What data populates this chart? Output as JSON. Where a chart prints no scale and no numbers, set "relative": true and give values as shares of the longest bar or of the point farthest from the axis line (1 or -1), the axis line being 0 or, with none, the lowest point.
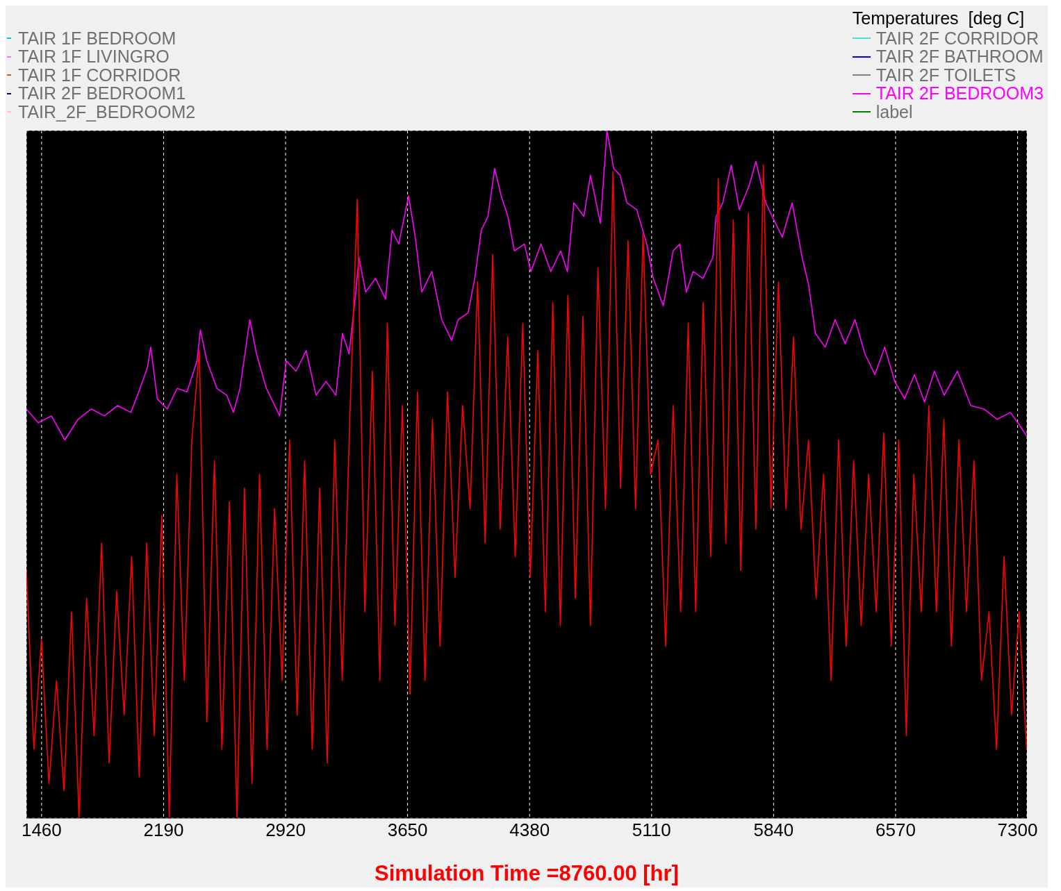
{
  "chart_data": {
    "type": "line",
    "relative": true,
    "legend_title": "Temperatures  [deg C]",
    "legend": "top",
    "grid": true,
    "xlabel": "Simulation Time =8760.00 [hr]",
    "xlim": [
      1369,
      7356
    ],
    "xticks": [
      1460,
      2190,
      2920,
      3650,
      4380,
      5110,
      5840,
      6570,
      7300
    ],
    "series": [
      {
        "name": "TAIR 1F BEDROOM",
        "color": "#00bfff"
      },
      {
        "name": "TAIR 1F LIVINGRO",
        "color": "#ee82ee"
      },
      {
        "name": "TAIR 1F CORRIDOR",
        "color": "#cc6600"
      },
      {
        "name": "TAIR 2F BEDROOM1",
        "color": "#000080"
      },
      {
        "name": "TAIR_2F_BEDROOM2",
        "color": "#ffc0cb"
      },
      {
        "name": "TAIR 2F CORRIDOR",
        "color": "#40e0e0"
      },
      {
        "name": "TAIR 2F BATHROOM",
        "color": "#0000ff"
      },
      {
        "name": "TAIR 2F TOILETS",
        "color": "#808080"
      },
      {
        "name": "TAIR 2F BEDROOM3",
        "color": "#ff00ff",
        "x": [
          1369,
          1440,
          1519,
          1599,
          1678,
          1757,
          1836,
          1915,
          1994,
          2034,
          2093,
          2113,
          2152,
          2212,
          2271,
          2330,
          2390,
          2410,
          2449,
          2509,
          2568,
          2608,
          2647,
          2706,
          2746,
          2805,
          2865,
          2884,
          2924,
          2983,
          3043,
          3102,
          3162,
          3221,
          3260,
          3300,
          3340,
          3359,
          3399,
          3458,
          3518,
          3557,
          3597,
          3656,
          3696,
          3735,
          3795,
          3854,
          3913,
          3953,
          4012,
          4052,
          4091,
          4131,
          4171,
          4210,
          4250,
          4289,
          4349,
          4388,
          4448,
          4507,
          4566,
          4606,
          4645,
          4705,
          4744,
          4804,
          4843,
          4883,
          4922,
          4962,
          5021,
          5081,
          5120,
          5180,
          5239,
          5279,
          5318,
          5358,
          5417,
          5476,
          5496,
          5536,
          5587,
          5635,
          5694,
          5734,
          5793,
          5832,
          5892,
          5951,
          6011,
          6050,
          6090,
          6149,
          6208,
          6268,
          6327,
          6387,
          6446,
          6505,
          6565,
          6624,
          6683,
          6743,
          6802,
          6861,
          6940,
          7020,
          7099,
          7178,
          7257,
          7316,
          7356
        ],
        "values": [
          0.595,
          0.575,
          0.585,
          0.55,
          0.58,
          0.595,
          0.585,
          0.6,
          0.59,
          0.615,
          0.655,
          0.685,
          0.61,
          0.595,
          0.625,
          0.62,
          0.665,
          0.71,
          0.665,
          0.625,
          0.615,
          0.59,
          0.625,
          0.725,
          0.675,
          0.625,
          0.595,
          0.585,
          0.665,
          0.65,
          0.68,
          0.615,
          0.635,
          0.615,
          0.705,
          0.675,
          0.765,
          0.815,
          0.765,
          0.785,
          0.755,
          0.855,
          0.835,
          0.905,
          0.845,
          0.765,
          0.795,
          0.725,
          0.695,
          0.725,
          0.735,
          0.785,
          0.855,
          0.875,
          0.945,
          0.905,
          0.875,
          0.825,
          0.835,
          0.795,
          0.835,
          0.795,
          0.825,
          0.795,
          0.895,
          0.875,
          0.935,
          0.865,
          1,
          0.945,
          0.935,
          0.895,
          0.885,
          0.835,
          0.785,
          0.745,
          0.825,
          0.835,
          0.765,
          0.795,
          0.785,
          0.815,
          0.875,
          0.895,
          0.95,
          0.885,
          0.92,
          0.955,
          0.895,
          0.875,
          0.845,
          0.895,
          0.815,
          0.775,
          0.705,
          0.685,
          0.725,
          0.69,
          0.725,
          0.675,
          0.645,
          0.685,
          0.635,
          0.61,
          0.645,
          0.605,
          0.65,
          0.615,
          0.65,
          0.6,
          0.595,
          0.58,
          0.59,
          0.57,
          0.555
        ]
      },
      {
        "name": "label",
        "color": "#008000"
      },
      {
        "color": "#ff0000",
        "x": [
          1369,
          1414,
          1459,
          1504,
          1549,
          1594,
          1639,
          1684,
          1729,
          1774,
          1819,
          1864,
          1909,
          1954,
          1999,
          2044,
          2089,
          2134,
          2179,
          2224,
          2269,
          2314,
          2359,
          2404,
          2449,
          2494,
          2539,
          2584,
          2629,
          2674,
          2719,
          2764,
          2809,
          2854,
          2899,
          2944,
          2989,
          3034,
          3079,
          3124,
          3169,
          3214,
          3259,
          3304,
          3349,
          3394,
          3439,
          3484,
          3529,
          3574,
          3619,
          3664,
          3709,
          3754,
          3799,
          3844,
          3889,
          3934,
          3979,
          4024,
          4069,
          4114,
          4159,
          4204,
          4249,
          4294,
          4339,
          4384,
          4429,
          4474,
          4519,
          4564,
          4609,
          4654,
          4699,
          4744,
          4789,
          4834,
          4879,
          4924,
          4969,
          5014,
          5059,
          5104,
          5149,
          5194,
          5239,
          5284,
          5329,
          5374,
          5419,
          5464,
          5509,
          5554,
          5599,
          5644,
          5689,
          5734,
          5779,
          5824,
          5869,
          5914,
          5959,
          6004,
          6049,
          6094,
          6139,
          6184,
          6229,
          6274,
          6319,
          6364,
          6409,
          6454,
          6499,
          6544,
          6589,
          6634,
          6679,
          6724,
          6769,
          6814,
          6859,
          6904,
          6949,
          6994,
          7039,
          7084,
          7129,
          7174,
          7219,
          7264,
          7309,
          7354
        ],
        "values": [
          0.36,
          0.1,
          0.26,
          0.05,
          0.2,
          0.04,
          0.3,
          0,
          0.32,
          0.12,
          0.4,
          0.08,
          0.33,
          0.15,
          0.38,
          0.06,
          0.4,
          0.12,
          0.44,
          0,
          0.5,
          0.2,
          0.55,
          0.68,
          0.14,
          0.52,
          0.1,
          0.46,
          0,
          0.48,
          0.05,
          0.5,
          0.1,
          0.45,
          0.2,
          0.55,
          0.15,
          0.52,
          0.1,
          0.48,
          0.08,
          0.55,
          0.2,
          0.58,
          0.9,
          0.3,
          0.65,
          0.2,
          0.72,
          0.28,
          0.6,
          0.18,
          0.62,
          0.2,
          0.58,
          0.25,
          0.62,
          0.35,
          0.6,
          0.45,
          0.78,
          0.4,
          0.82,
          0.42,
          0.7,
          0.38,
          0.72,
          0.35,
          0.68,
          0.3,
          0.75,
          0.28,
          0.76,
          0.32,
          0.73,
          0.28,
          0.8,
          0.45,
          0.94,
          0.48,
          0.84,
          0.45,
          0.85,
          0.5,
          0.55,
          0.25,
          0.6,
          0.3,
          0.72,
          0.3,
          0.75,
          0.38,
          0.93,
          0.4,
          0.87,
          0.36,
          0.88,
          0.42,
          0.95,
          0.45,
          0.78,
          0.45,
          0.7,
          0.42,
          0.55,
          0.32,
          0.5,
          0.2,
          0.55,
          0.25,
          0.52,
          0.28,
          0.5,
          0.3,
          0.56,
          0.25,
          0.55,
          0.12,
          0.5,
          0.3,
          0.6,
          0.3,
          0.58,
          0.25,
          0.55,
          0.3,
          0.52,
          0.2,
          0.3,
          0.1,
          0.38,
          0.15,
          0.3,
          0.1
        ]
      }
    ]
  }
}
